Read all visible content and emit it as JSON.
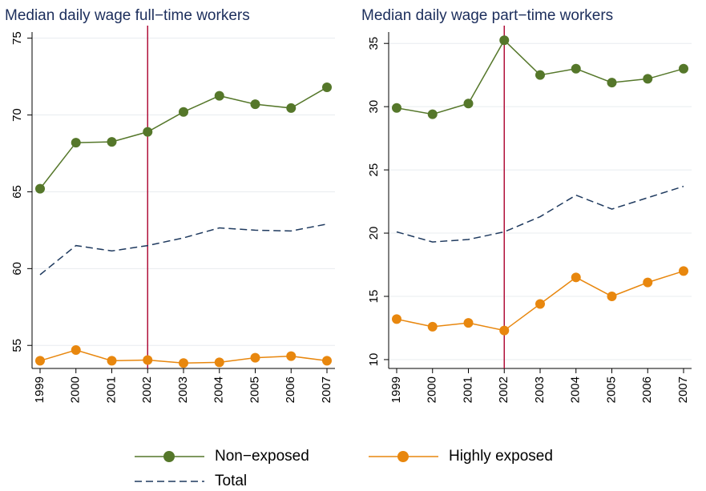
{
  "chart_data": [
    {
      "type": "line",
      "title": "Median daily wage full−time workers",
      "x": [
        1999,
        2000,
        2001,
        2002,
        2003,
        2004,
        2005,
        2006,
        2007
      ],
      "xlim": [
        1999,
        2007
      ],
      "ylim": [
        53.5,
        75.4
      ],
      "yticks": [
        55,
        60,
        65,
        70,
        75
      ],
      "grid": true,
      "vline": 2002,
      "vline_color": "#b0103a",
      "legend": "bottom",
      "series": [
        {
          "name": "Non−exposed",
          "color": "#55772a",
          "marker": true,
          "dashed": false,
          "values": [
            65.2,
            68.2,
            68.25,
            68.9,
            70.2,
            71.25,
            70.7,
            70.45,
            71.8
          ]
        },
        {
          "name": "Highly exposed",
          "color": "#e8870e",
          "marker": true,
          "dashed": false,
          "values": [
            54.0,
            54.7,
            54.0,
            54.05,
            53.85,
            53.9,
            54.2,
            54.3,
            54.0
          ]
        },
        {
          "name": "Total",
          "color": "#1f3a5f",
          "marker": false,
          "dashed": true,
          "values": [
            59.6,
            61.5,
            61.15,
            61.5,
            62.0,
            62.65,
            62.5,
            62.45,
            62.9
          ]
        }
      ]
    },
    {
      "type": "line",
      "title": "Median daily wage part−time workers",
      "x": [
        1999,
        2000,
        2001,
        2002,
        2003,
        2004,
        2005,
        2006,
        2007
      ],
      "xlim": [
        1999,
        2007
      ],
      "ylim": [
        9.3,
        35.9
      ],
      "yticks": [
        10,
        15,
        20,
        25,
        30,
        35
      ],
      "grid": true,
      "vline": 2002,
      "vline_color": "#b0103a",
      "series": [
        {
          "name": "Non−exposed",
          "color": "#55772a",
          "marker": true,
          "dashed": false,
          "values": [
            29.9,
            29.4,
            30.25,
            35.25,
            32.5,
            33.0,
            31.9,
            32.2,
            33.0
          ]
        },
        {
          "name": "Highly exposed",
          "color": "#e8870e",
          "marker": true,
          "dashed": false,
          "values": [
            13.2,
            12.6,
            12.9,
            12.3,
            14.4,
            16.5,
            15.0,
            16.1,
            17.0
          ]
        },
        {
          "name": "Total",
          "color": "#1f3a5f",
          "marker": false,
          "dashed": true,
          "values": [
            20.1,
            19.3,
            19.5,
            20.1,
            21.3,
            23.0,
            21.9,
            22.8,
            23.7
          ]
        }
      ]
    }
  ]
}
